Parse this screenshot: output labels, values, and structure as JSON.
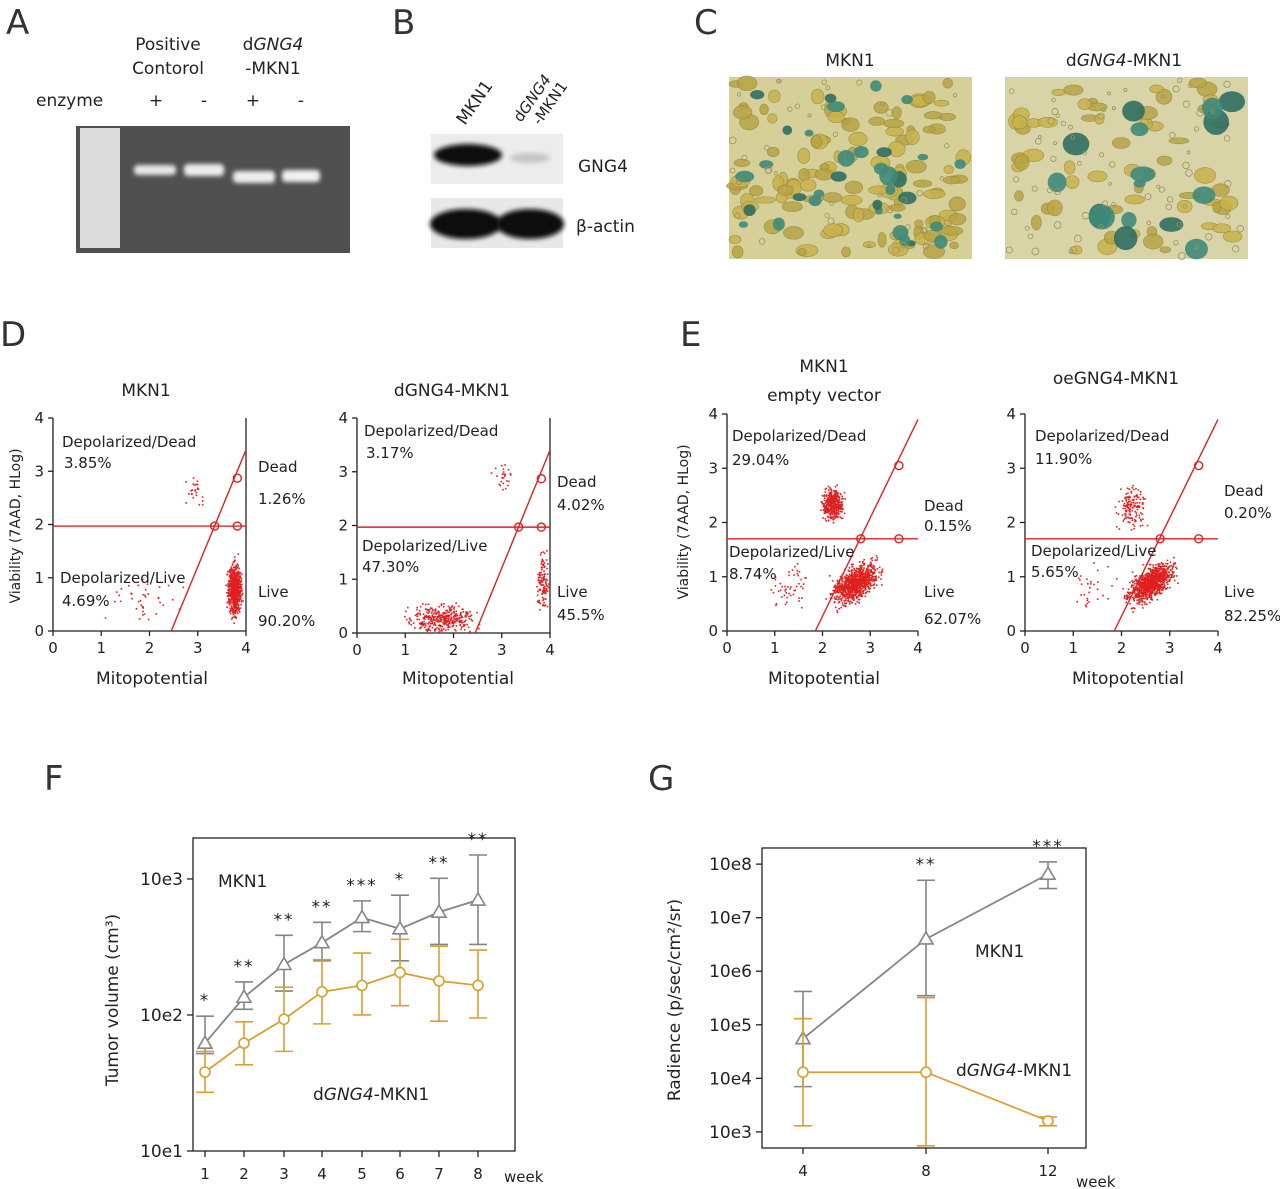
{
  "panels": {
    "A": {
      "letter": "A",
      "col1": [
        "Positive",
        "Contorol"
      ],
      "col2_prefix": "d",
      "col2_italic": "GNG4",
      "col2_line2": "-MKN1",
      "enzyme_label": "enzyme",
      "signs": [
        "+",
        "-",
        "+",
        "-"
      ]
    },
    "B": {
      "letter": "B",
      "lane1": "MKN1",
      "lane2_prefix": "d",
      "lane2_italic": "GNG4",
      "lane2_line2": "-MKN1",
      "band1": "GNG4",
      "band2": "β-actin"
    },
    "C": {
      "letter": "C",
      "left_title": "MKN1",
      "right_prefix": "d",
      "right_italic": "GNG4",
      "right_suffix": "-MKN1"
    },
    "D": {
      "letter": "D",
      "ylabel": "Viability (7AAD, HLog)",
      "xlabel": "Mitopotential",
      "ticks": [
        "0",
        "1",
        "2",
        "3",
        "4"
      ],
      "plots": [
        {
          "title": "MKN1",
          "dep_dead_label": "Depolarized/Dead",
          "dep_dead_pct": "3.85%",
          "dead_label": "Dead",
          "dead_pct": "1.26%",
          "dep_live_label": "Depolarized/Live",
          "dep_live_pct": "4.69%",
          "live_label": "Live",
          "live_pct": "90.20%"
        },
        {
          "title": "dGNG4-MKN1",
          "dep_dead_label": "Depolarized/Dead",
          "dep_dead_pct": "3.17%",
          "dead_label": "Dead",
          "dead_pct": "4.02%",
          "dep_live_label": "Depolarized/Live",
          "dep_live_pct": "47.30%",
          "live_label": "Live",
          "live_pct": "45.5%"
        }
      ]
    },
    "E": {
      "letter": "E",
      "ylabel": "Viability (7AAD, HLog)",
      "xlabel": "Mitopotential",
      "ticks": [
        "0",
        "1",
        "2",
        "3",
        "4"
      ],
      "plots": [
        {
          "title_line1": "MKN1",
          "title_line2": "empty vector",
          "dep_dead_label": "Depolarized/Dead",
          "dep_dead_pct": "29.04%",
          "dead_label": "Dead",
          "dead_pct": "0.15%",
          "dep_live_label": "Depolarized/Live",
          "dep_live_pct": "8.74%",
          "live_label": "Live",
          "live_pct": "62.07%"
        },
        {
          "title_line1": "oeGNG4-MKN1",
          "dep_dead_label": "Depolarized/Dead",
          "dep_dead_pct": "11.90%",
          "dead_label": "Dead",
          "dead_pct": "0.20%",
          "dep_live_label": "Depolarized/Live",
          "dep_live_pct": "5.65%",
          "live_label": "Live",
          "live_pct": "82.25%"
        }
      ]
    },
    "F": {
      "letter": "F",
      "label_mkn1": "MKN1",
      "label_dgng_prefix": "d",
      "label_dgng_italic": "GNG4",
      "label_dgng_suffix": "-MKN1"
    },
    "G": {
      "letter": "G",
      "label_mkn1": "MKN1",
      "label_dgng_prefix": "d",
      "label_dgng_italic": "GNG4",
      "label_dgng_suffix": "-MKN1"
    }
  },
  "colors": {
    "mkn1": "#858585",
    "dgng4": "#d9a030",
    "gate": "#e02020"
  },
  "chart_data": [
    {
      "type": "line",
      "panel": "F",
      "ylabel": "Tumor volume (cm³)",
      "xlabel": "week",
      "x": [
        1,
        2,
        3,
        4,
        5,
        6,
        7,
        8
      ],
      "x_tick_labels": [
        "1",
        "2",
        "3",
        "4",
        "5",
        "6",
        "7",
        "8"
      ],
      "y_scale": "log",
      "ylim": [
        10,
        2000
      ],
      "y_tick_values": [
        10,
        100,
        1000
      ],
      "y_tick_labels": [
        "10e1",
        "10e2",
        "10e3"
      ],
      "series": [
        {
          "name": "MKN1",
          "marker": "triangle",
          "values": [
            62,
            135,
            235,
            340,
            520,
            430,
            570,
            700
          ],
          "err_low": [
            52,
            110,
            150,
            250,
            410,
            250,
            330,
            330
          ],
          "err_high": [
            98,
            175,
            385,
            480,
            690,
            760,
            1010,
            1500
          ]
        },
        {
          "name": "dGNG4-MKN1",
          "marker": "circle",
          "values": [
            38,
            62,
            93,
            148,
            165,
            205,
            178,
            165
          ],
          "err_low": [
            27,
            43,
            54,
            86,
            100,
            117,
            90,
            95
          ],
          "err_high": [
            54,
            89,
            160,
            255,
            285,
            360,
            320,
            300
          ]
        }
      ],
      "significance": [
        "*",
        "**",
        "**",
        "**",
        "***",
        "*",
        "**",
        "**"
      ]
    },
    {
      "type": "line",
      "panel": "G",
      "ylabel": "Radience (p/sec/cm²/sr)",
      "xlabel": "week",
      "x": [
        4,
        8,
        12
      ],
      "x_tick_labels": [
        "4",
        "8",
        "12"
      ],
      "y_scale": "log",
      "ylim": [
        500,
        200000000
      ],
      "y_tick_values": [
        1000,
        10000,
        100000,
        1000000,
        10000000,
        100000000
      ],
      "y_tick_labels": [
        "10e3",
        "10e4",
        "10e5",
        "10e6",
        "10e7",
        "10e8"
      ],
      "series": [
        {
          "name": "MKN1",
          "marker": "triangle",
          "values": [
            55000,
            4000000,
            65000000
          ],
          "err_low": [
            7000,
            350000,
            35000000
          ],
          "err_high": [
            420000,
            50000000,
            110000000
          ]
        },
        {
          "name": "dGNG4-MKN1",
          "marker": "circle",
          "values": [
            13000,
            13000,
            1600
          ],
          "err_low": [
            1300,
            550,
            1300
          ],
          "err_high": [
            130000,
            320000,
            1900
          ]
        }
      ],
      "significance": [
        "",
        "**",
        "***"
      ]
    }
  ]
}
